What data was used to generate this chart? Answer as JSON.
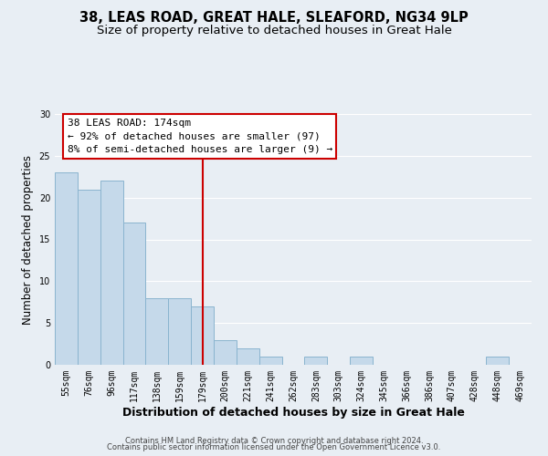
{
  "title": "38, LEAS ROAD, GREAT HALE, SLEAFORD, NG34 9LP",
  "subtitle": "Size of property relative to detached houses in Great Hale",
  "xlabel": "Distribution of detached houses by size in Great Hale",
  "ylabel": "Number of detached properties",
  "bar_labels": [
    "55sqm",
    "76sqm",
    "96sqm",
    "117sqm",
    "138sqm",
    "159sqm",
    "179sqm",
    "200sqm",
    "221sqm",
    "241sqm",
    "262sqm",
    "283sqm",
    "303sqm",
    "324sqm",
    "345sqm",
    "366sqm",
    "386sqm",
    "407sqm",
    "428sqm",
    "448sqm",
    "469sqm"
  ],
  "bar_values": [
    23,
    21,
    22,
    17,
    8,
    8,
    7,
    3,
    2,
    1,
    0,
    1,
    0,
    1,
    0,
    0,
    0,
    0,
    0,
    1,
    0
  ],
  "bar_color": "#c5d9ea",
  "bar_edge_color": "#8ab4cf",
  "vline_x_index": 6,
  "vline_color": "#cc0000",
  "annotation_title": "38 LEAS ROAD: 174sqm",
  "annotation_line1": "← 92% of detached houses are smaller (97)",
  "annotation_line2": "8% of semi-detached houses are larger (9) →",
  "annotation_box_color": "#ffffff",
  "annotation_box_edge": "#cc0000",
  "ylim": [
    0,
    30
  ],
  "yticks": [
    0,
    5,
    10,
    15,
    20,
    25,
    30
  ],
  "footer1": "Contains HM Land Registry data © Crown copyright and database right 2024.",
  "footer2": "Contains public sector information licensed under the Open Government Licence v3.0.",
  "background_color": "#e8eef4",
  "plot_bg_color": "#e8eef4",
  "grid_color": "#ffffff",
  "title_fontsize": 10.5,
  "subtitle_fontsize": 9.5,
  "xlabel_fontsize": 9,
  "ylabel_fontsize": 8.5,
  "tick_fontsize": 7,
  "annotation_fontsize": 8,
  "footer_fontsize": 6
}
